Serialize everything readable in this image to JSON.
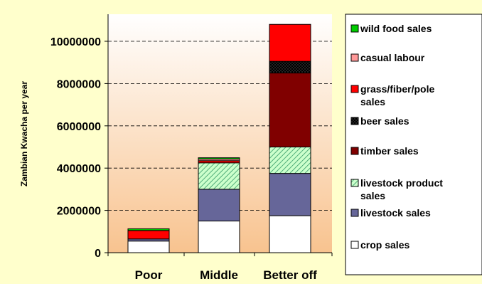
{
  "chart_data": {
    "type": "bar",
    "stacked": true,
    "categories": [
      "Poor",
      "Middle",
      "Better off"
    ],
    "ylabel": "Zambian Kwacha per year",
    "xlabel": "",
    "ylim": [
      0,
      10000000
    ],
    "yticks": [
      0,
      2000000,
      4000000,
      6000000,
      8000000,
      10000000
    ],
    "grid": "horizontal dashed",
    "legend_position": "right",
    "series": [
      {
        "name": "crop sales",
        "color": "#FFFFFF",
        "pattern": "none",
        "values": [
          550000,
          1500000,
          1750000
        ]
      },
      {
        "name": "livestock sales",
        "color": "#666699",
        "pattern": "none",
        "values": [
          100000,
          1500000,
          2000000
        ]
      },
      {
        "name": "livestock product sales",
        "color": "#CCFFCC",
        "pattern": "diagonal-hatch-green",
        "values": [
          0,
          1250000,
          1250000
        ]
      },
      {
        "name": "timber sales",
        "color": "#800000",
        "pattern": "none",
        "values": [
          0,
          0,
          3500000
        ]
      },
      {
        "name": "beer sales",
        "color": "#000000",
        "pattern": "dotted-dark",
        "values": [
          0,
          0,
          550000
        ]
      },
      {
        "name": "grass/fiber/pole sales",
        "color": "#FF0000",
        "pattern": "none",
        "values": [
          400000,
          100000,
          1750000
        ]
      },
      {
        "name": "casual labour",
        "color": "#FF9999",
        "pattern": "none",
        "values": [
          0,
          80000,
          0
        ]
      },
      {
        "name": "wild food sales",
        "color": "#00CC00",
        "pattern": "none",
        "values": [
          80000,
          60000,
          0
        ]
      }
    ],
    "legend_order": [
      "wild food sales",
      "casual labour",
      "grass/fiber/pole sales",
      "beer sales",
      "timber sales",
      "livestock product sales",
      "livestock sales",
      "crop sales"
    ]
  }
}
